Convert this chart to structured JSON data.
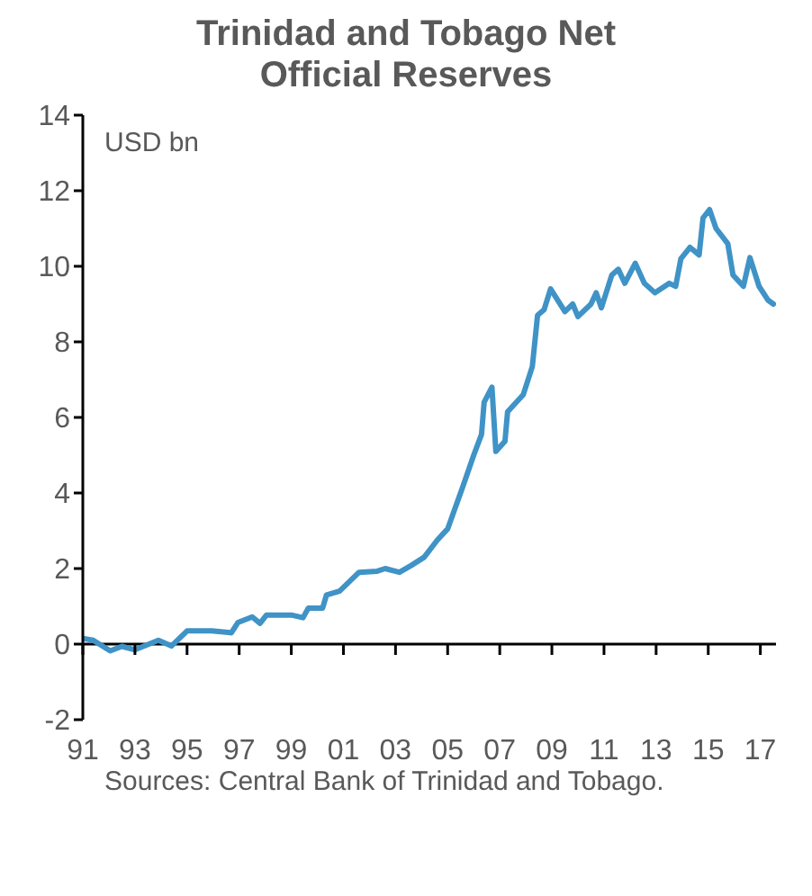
{
  "chart_data": {
    "type": "line",
    "title": "Trinidad and Tobago Net Official Reserves",
    "ylabel": "USD bn",
    "annotations": [
      "Sources: Central Bank of Trinidad and Tobago."
    ],
    "x": [
      1991.0,
      1991.4,
      1992.05,
      1992.5,
      1993.0,
      1993.9,
      1994.4,
      1995.0,
      1995.95,
      1996.7,
      1996.95,
      1997.5,
      1997.8,
      1998.05,
      1999.0,
      1999.45,
      1999.65,
      2000.2,
      2000.35,
      2000.85,
      2001.6,
      2002.3,
      2002.6,
      2003.15,
      2003.6,
      2004.1,
      2004.6,
      2005.0,
      2005.6,
      2006.0,
      2006.3,
      2006.4,
      2006.7,
      2006.85,
      2007.2,
      2007.3,
      2007.9,
      2008.25,
      2008.45,
      2008.7,
      2008.95,
      2009.5,
      2009.8,
      2010.0,
      2010.5,
      2010.7,
      2010.9,
      2011.3,
      2011.55,
      2011.8,
      2012.2,
      2012.55,
      2012.95,
      2013.5,
      2013.75,
      2013.95,
      2014.3,
      2014.65,
      2014.8,
      2015.05,
      2015.3,
      2015.75,
      2015.95,
      2016.35,
      2016.6,
      2016.95,
      2017.3,
      2017.5
    ],
    "series": [
      {
        "color": "#3f93c6",
        "values": [
          0.15,
          0.1,
          -0.18,
          -0.06,
          -0.15,
          0.1,
          -0.05,
          0.35,
          0.35,
          0.3,
          0.57,
          0.72,
          0.55,
          0.77,
          0.77,
          0.7,
          0.95,
          0.95,
          1.3,
          1.4,
          1.9,
          1.93,
          2.0,
          1.9,
          2.08,
          2.3,
          2.75,
          3.05,
          4.2,
          5.0,
          5.55,
          6.4,
          6.8,
          5.1,
          5.37,
          6.15,
          6.6,
          7.35,
          8.7,
          8.85,
          9.4,
          8.8,
          9.0,
          8.67,
          9.0,
          9.3,
          8.9,
          9.77,
          9.92,
          9.55,
          10.08,
          9.55,
          9.3,
          9.55,
          9.47,
          10.2,
          10.5,
          10.3,
          11.28,
          11.5,
          11.0,
          10.6,
          9.77,
          9.47,
          10.23,
          9.47,
          9.1,
          9.0
        ]
      }
    ],
    "xlim": [
      1991,
      2017.6
    ],
    "xticks": [
      {
        "value": 1991,
        "label": "91"
      },
      {
        "value": 1993,
        "label": "93"
      },
      {
        "value": 1995,
        "label": "95"
      },
      {
        "value": 1997,
        "label": "97"
      },
      {
        "value": 1999,
        "label": "99"
      },
      {
        "value": 2001,
        "label": "01"
      },
      {
        "value": 2003,
        "label": "03"
      },
      {
        "value": 2005,
        "label": "05"
      },
      {
        "value": 2007,
        "label": "07"
      },
      {
        "value": 2009,
        "label": "09"
      },
      {
        "value": 2011,
        "label": "11"
      },
      {
        "value": 2013,
        "label": "13"
      },
      {
        "value": 2015,
        "label": "15"
      },
      {
        "value": 2017,
        "label": "17"
      }
    ],
    "ylim": [
      -2,
      14
    ],
    "yticks": [
      -2,
      0,
      2,
      4,
      6,
      8,
      10,
      12,
      14
    ],
    "marker": "none",
    "line_style": "solid"
  }
}
